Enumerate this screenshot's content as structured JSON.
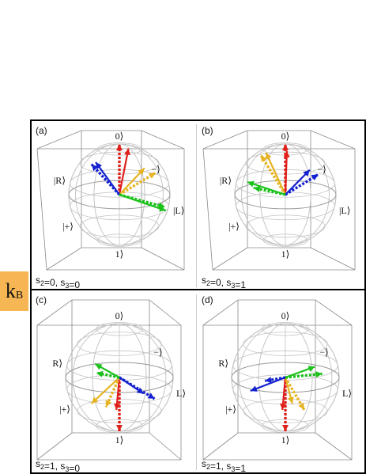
{
  "side_label": {
    "main": "k",
    "sub": "B"
  },
  "colors": {
    "red": "#e0201b",
    "yellow": "#e6b322",
    "blue": "#1320d0",
    "green": "#19c219",
    "sphere": "#c4c4c4",
    "box": "#8a8a8a"
  },
  "panels": [
    {
      "id": "a",
      "tag": "(a)",
      "caption": {
        "s2": "0",
        "s3": "0"
      },
      "caption_text": "s2=0, s3=0",
      "labels": {
        "top": "0⟩",
        "bottom": "1⟩",
        "left": "|R⟩",
        "right": "|L⟩",
        "front": "|+⟩",
        "back": "−⟩"
      },
      "vectors": [
        {
          "color": "red",
          "style": "dashed",
          "dir": [
            0,
            0.0,
            1.0
          ]
        },
        {
          "color": "red",
          "style": "solid",
          "dir": [
            0.25,
            0.2,
            0.95
          ]
        },
        {
          "color": "yellow",
          "style": "dashed",
          "dir": [
            0.75,
            0.1,
            0.45
          ]
        },
        {
          "color": "yellow",
          "style": "solid",
          "dir": [
            0.55,
            0.15,
            0.55
          ]
        },
        {
          "color": "blue",
          "style": "dashed",
          "dir": [
            -0.55,
            0.0,
            0.6
          ]
        },
        {
          "color": "blue",
          "style": "solid",
          "dir": [
            -0.45,
            0.05,
            0.65
          ]
        },
        {
          "color": "green",
          "style": "dashed",
          "dir": [
            0.8,
            -0.3,
            -0.3
          ]
        },
        {
          "color": "green",
          "style": "solid",
          "dir": [
            0.85,
            -0.2,
            -0.35
          ]
        }
      ]
    },
    {
      "id": "b",
      "tag": "(b)",
      "caption": {
        "s2": "0",
        "s3": "1"
      },
      "caption_text": "s2=0, s3=1",
      "labels": {
        "top": "0⟩",
        "bottom": "1⟩",
        "left": "|R⟩",
        "right": "|L⟩",
        "front": "|+⟩",
        "back": "−⟩"
      },
      "vectors": [
        {
          "color": "red",
          "style": "dashed",
          "dir": [
            0,
            0.0,
            1.0
          ]
        },
        {
          "color": "red",
          "style": "solid",
          "dir": [
            0.1,
            0.2,
            0.9
          ]
        },
        {
          "color": "yellow",
          "style": "dashed",
          "dir": [
            -0.45,
            0.1,
            0.8
          ]
        },
        {
          "color": "yellow",
          "style": "solid",
          "dir": [
            -0.35,
            0.1,
            0.85
          ]
        },
        {
          "color": "blue",
          "style": "dashed",
          "dir": [
            0.65,
            0.0,
            0.4
          ]
        },
        {
          "color": "blue",
          "style": "solid",
          "dir": [
            0.5,
            0.05,
            0.5
          ]
        },
        {
          "color": "green",
          "style": "dashed",
          "dir": [
            -0.7,
            -0.2,
            0.1
          ]
        },
        {
          "color": "green",
          "style": "solid",
          "dir": [
            -0.75,
            0.0,
            0.25
          ]
        }
      ]
    },
    {
      "id": "c",
      "tag": "(c)",
      "caption": {
        "s2": "1",
        "s3": "0"
      },
      "caption_text": "s2=1, s3=0",
      "labels": {
        "top": "0⟩",
        "bottom": "1⟩",
        "left": "R⟩",
        "right": "L⟩",
        "front": "|+⟩",
        "back": "−⟩"
      },
      "vectors": [
        {
          "color": "red",
          "style": "dashed",
          "dir": [
            0,
            0.0,
            -1.0
          ]
        },
        {
          "color": "red",
          "style": "solid",
          "dir": [
            0.05,
            0.3,
            -0.55
          ]
        },
        {
          "color": "yellow",
          "style": "dashed",
          "dir": [
            -0.25,
            0.0,
            -0.55
          ]
        },
        {
          "color": "yellow",
          "style": "solid",
          "dir": [
            -0.45,
            0.2,
            -0.45
          ]
        },
        {
          "color": "blue",
          "style": "dashed",
          "dir": [
            0.55,
            -0.3,
            -0.45
          ]
        },
        {
          "color": "blue",
          "style": "solid",
          "dir": [
            0.45,
            0.0,
            -0.3
          ]
        },
        {
          "color": "green",
          "style": "dashed",
          "dir": [
            -0.5,
            -0.2,
            0.05
          ]
        },
        {
          "color": "green",
          "style": "solid",
          "dir": [
            -0.45,
            0.0,
            0.25
          ]
        }
      ]
    },
    {
      "id": "d",
      "tag": "(d)",
      "caption": {
        "s2": "1",
        "s3": "1"
      },
      "caption_text": "s2=1, s3=1",
      "labels": {
        "top": "0⟩",
        "bottom": "1⟩",
        "left": "R⟩",
        "right": "L⟩",
        "front": "|+⟩",
        "back": "−⟩"
      },
      "vectors": [
        {
          "color": "red",
          "style": "dashed",
          "dir": [
            0,
            0.0,
            -1.0
          ]
        },
        {
          "color": "red",
          "style": "solid",
          "dir": [
            0.05,
            0.3,
            -0.55
          ]
        },
        {
          "color": "yellow",
          "style": "dashed",
          "dir": [
            0.35,
            0.0,
            -0.6
          ]
        },
        {
          "color": "yellow",
          "style": "solid",
          "dir": [
            0.2,
            0.2,
            -0.45
          ]
        },
        {
          "color": "blue",
          "style": "dashed",
          "dir": [
            -0.45,
            -0.2,
            -0.1
          ]
        },
        {
          "color": "blue",
          "style": "solid",
          "dir": [
            -0.65,
            0.0,
            -0.25
          ]
        },
        {
          "color": "green",
          "style": "dashed",
          "dir": [
            0.65,
            -0.1,
            0.05
          ]
        },
        {
          "color": "green",
          "style": "solid",
          "dir": [
            0.55,
            0.0,
            0.2
          ]
        }
      ]
    }
  ]
}
